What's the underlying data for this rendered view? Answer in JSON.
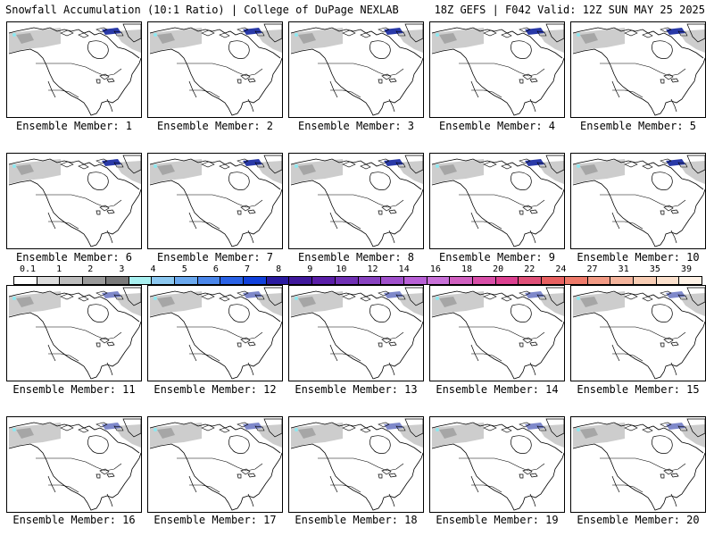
{
  "header": {
    "left": "Snowfall Accumulation (10:1 Ratio) | College of DuPage NEXLAB",
    "right": "18Z GEFS | F042 Valid: 12Z SUN MAY 25 2025"
  },
  "panel_label_prefix": "Ensemble Member: ",
  "members": [
    "1",
    "2",
    "3",
    "4",
    "5",
    "6",
    "7",
    "8",
    "9",
    "10",
    "11",
    "12",
    "13",
    "14",
    "15",
    "16",
    "17",
    "18",
    "19",
    "20"
  ],
  "colorbar": {
    "ticks": [
      "0.1",
      "1",
      "2",
      "3",
      "4",
      "5",
      "6",
      "7",
      "8",
      "9",
      "10",
      "12",
      "14",
      "16",
      "18",
      "20",
      "22",
      "24",
      "27",
      "31",
      "35",
      "39"
    ],
    "colors": [
      "#ffffff",
      "#dcdcdc",
      "#bdbdbd",
      "#9a9a9a",
      "#7a7a7a",
      "#a8f0f0",
      "#8cc8f0",
      "#6aa8ee",
      "#4a86ea",
      "#2a62e6",
      "#1040dc",
      "#2a1aa0",
      "#40189c",
      "#5a1ea8",
      "#7030b4",
      "#8842c0",
      "#a050cc",
      "#b860d6",
      "#c870d8",
      "#d060c0",
      "#d84ea8",
      "#dc4090",
      "#e05078",
      "#e86060",
      "#ee7a6a",
      "#f29a84",
      "#f4b49c",
      "#f8cdb4",
      "#fbe0cc",
      "#fff2e6"
    ]
  },
  "colors": {
    "land": "#ffffff",
    "snow_light": "#c8c8c8",
    "snow_mid": "#9c9c9c",
    "snow_heavy": "#2a3aa8",
    "snow_cyan": "#8ee8f0"
  }
}
